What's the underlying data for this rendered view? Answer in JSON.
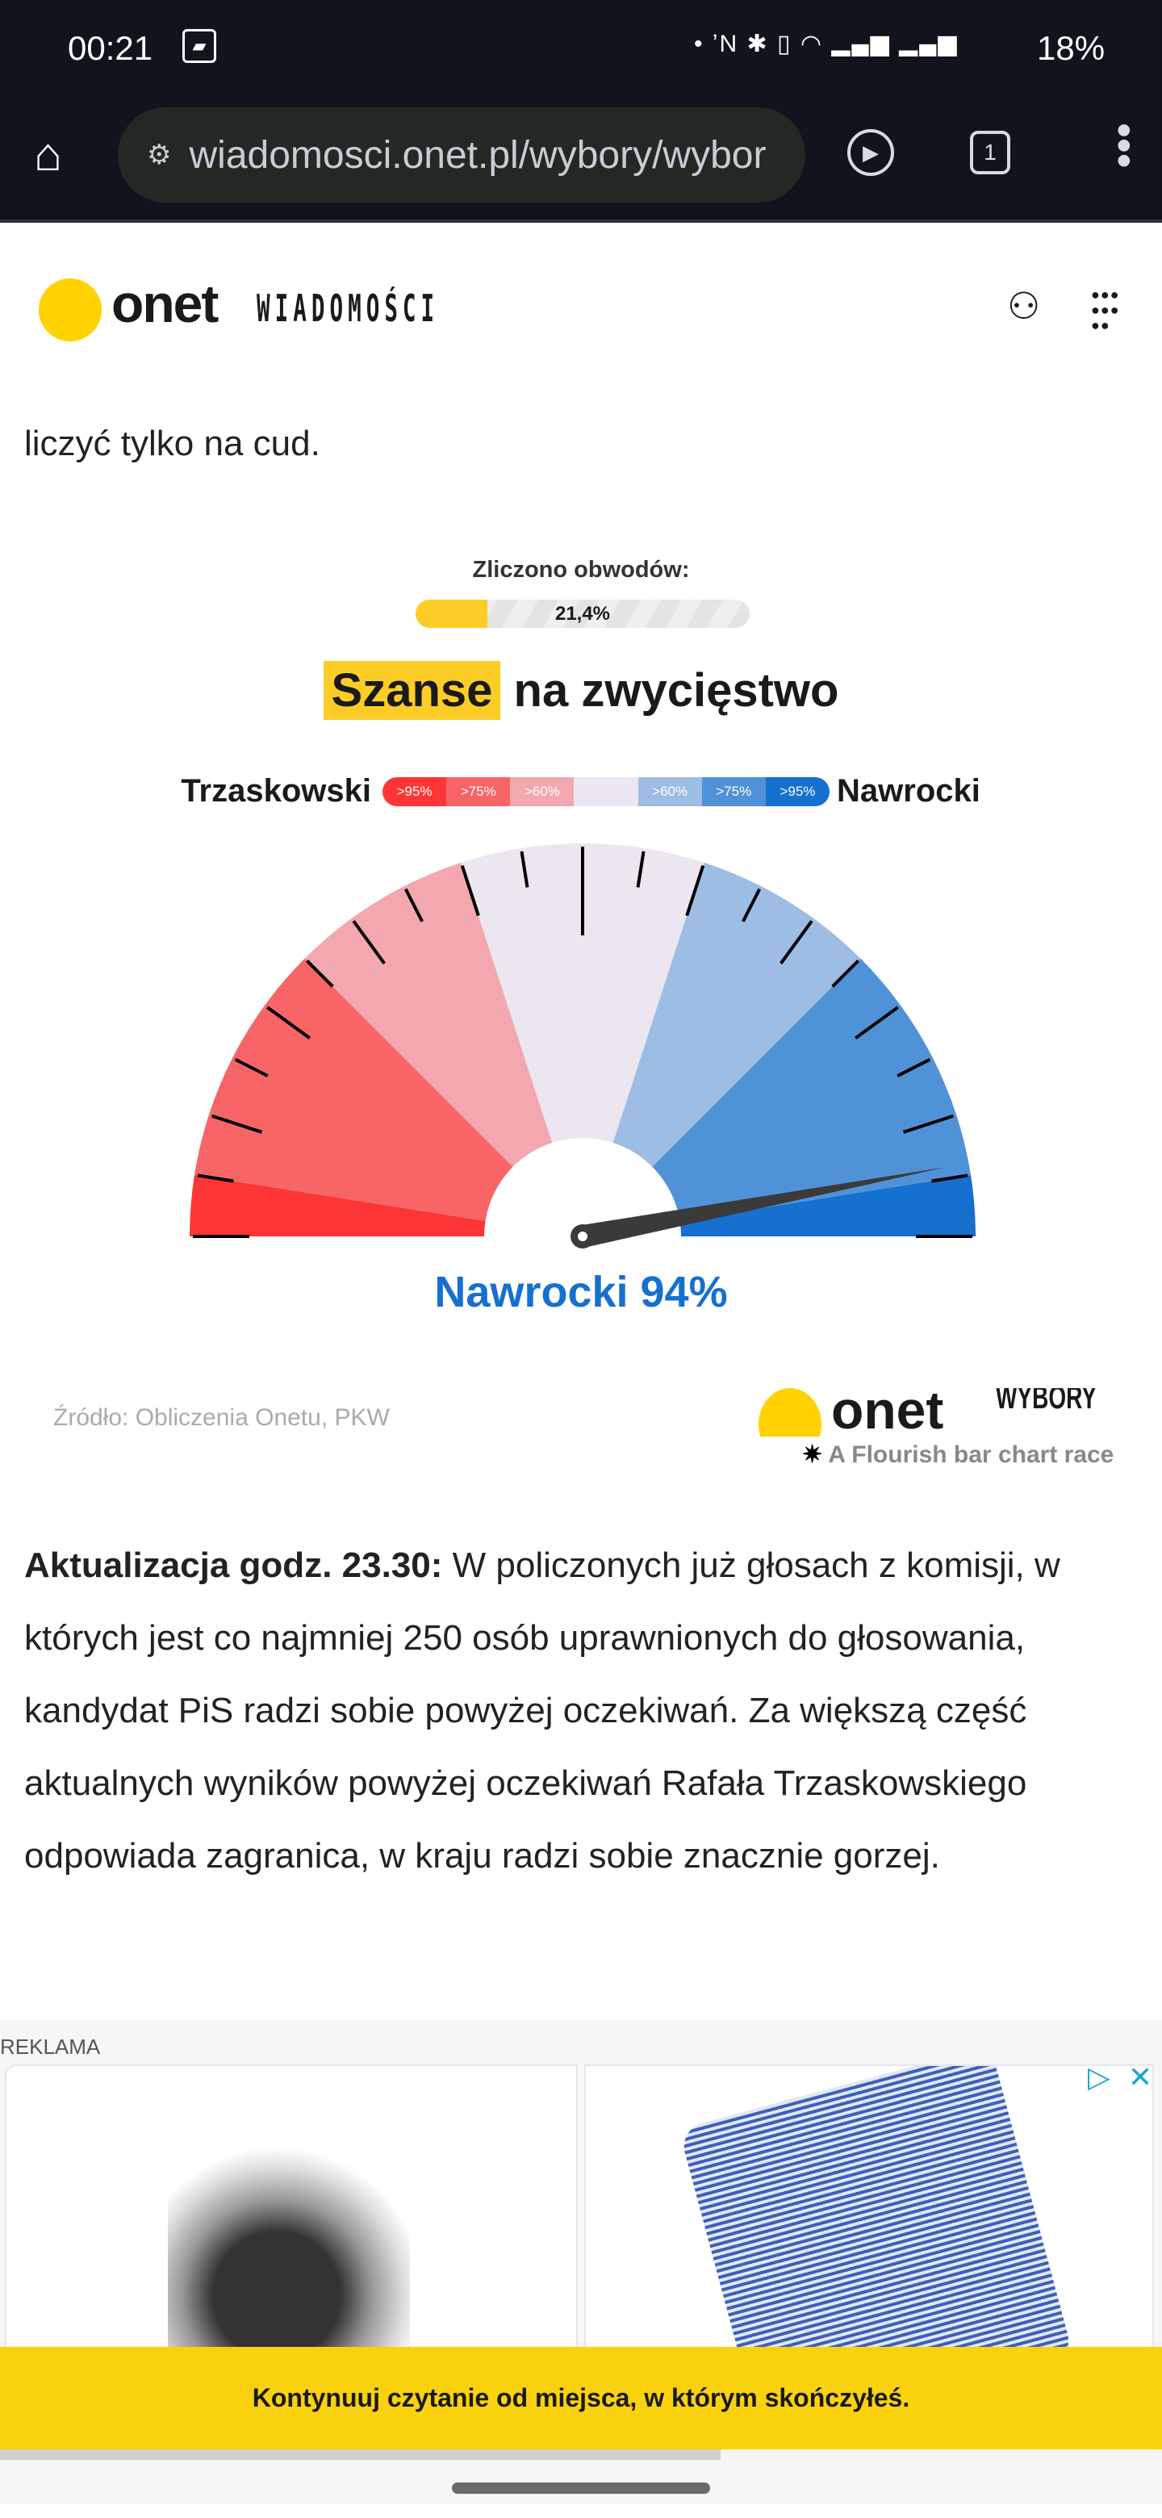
{
  "status_bar": {
    "time": "00:21",
    "battery": "18%"
  },
  "browser": {
    "url": "wiadomosci.onet.pl/wybory/wybor",
    "tab_count": "1"
  },
  "header": {
    "logo": "onet",
    "section": "WIADOMOŚCI"
  },
  "article": {
    "text_before": "liczyć tylko na cud.",
    "update_label": "Aktualizacja godz. 23.30:",
    "update_text": " W policzonych już głosach z komisji, w których jest co najmniej 250 osób uprawnionych do głosowania, kandydat PiS radzi sobie powyżej oczekiwań. Za większą część aktualnych wyników powyżej oczekiwań Rafała Trzaskowskiego odpowiada zagranica, w kraju radzi sobie znacznie gorzej."
  },
  "chart_data": {
    "type": "gauge",
    "counted_label": "Zliczono obwodów:",
    "counted_value": "21,4%",
    "counted_fraction": 0.214,
    "title_highlight": "Szanse",
    "title_rest": "na zwycięstwo",
    "left_candidate": "Trzaskowski",
    "right_candidate": "Nawrocki",
    "legend": [
      ">95%",
      ">75%",
      ">60%",
      "",
      ">60%",
      ">75%",
      ">95%"
    ],
    "bands": [
      {
        "from": 0,
        "to": 5,
        "color": "#fd3535"
      },
      {
        "from": 5,
        "to": 25,
        "color": "#f76567"
      },
      {
        "from": 25,
        "to": 40,
        "color": "#f3a7ae"
      },
      {
        "from": 40,
        "to": 60,
        "color": "#ebe6ef"
      },
      {
        "from": 60,
        "to": 75,
        "color": "#9ebde5"
      },
      {
        "from": 75,
        "to": 95,
        "color": "#5092d8"
      },
      {
        "from": 95,
        "to": 100,
        "color": "#1570cf"
      }
    ],
    "needle_value": 94,
    "result_label": "Nawrocki 94%",
    "result_color": "#1570cf",
    "source": "Źródło: Obliczenia Onetu, PKW",
    "brand": "WYBORY",
    "credit": "A Flourish bar chart race"
  },
  "ad": {
    "label": "REKLAMA"
  },
  "continue_banner": "Kontynuuj czytanie od miejsca, w którym skończyłeś.",
  "reading_progress": 0.62
}
